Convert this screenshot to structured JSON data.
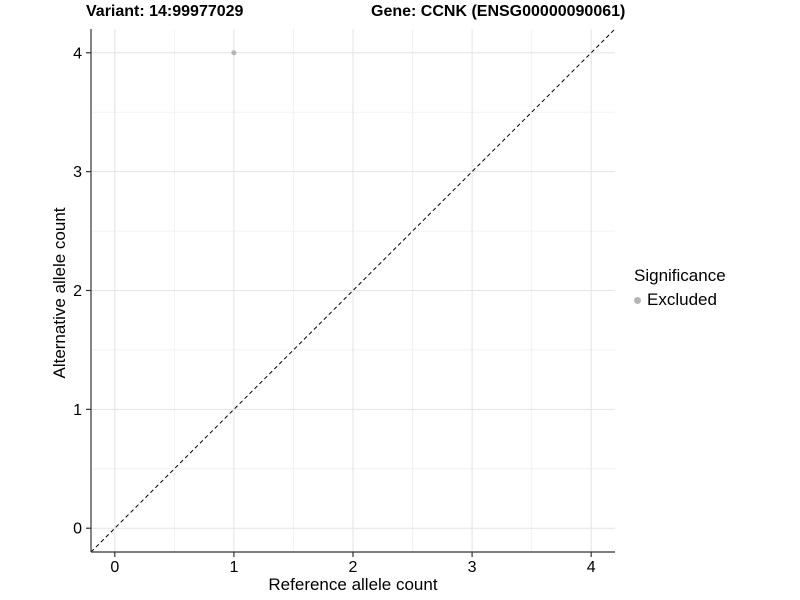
{
  "chart_data": {
    "type": "scatter",
    "titles": {
      "variant": "Variant: 14:99977029",
      "gene": "Gene: CCNK (ENSG00000090061)"
    },
    "xlabel": "Reference allele count",
    "ylabel": "Alternative allele count",
    "xlim": [
      -0.2,
      4.2
    ],
    "ylim": [
      -0.2,
      4.2
    ],
    "x_major_ticks": [
      0,
      1,
      2,
      3,
      4
    ],
    "y_major_ticks": [
      0,
      1,
      2,
      3,
      4
    ],
    "x_minor_ticks": [
      0.5,
      1.5,
      2.5,
      3.5
    ],
    "y_minor_ticks": [
      0.5,
      1.5,
      2.5,
      3.5
    ],
    "grid": true,
    "points": [
      {
        "x": 1,
        "y": 4,
        "significance": "Excluded"
      }
    ],
    "point_color": "#b5b5b5",
    "point_radius": 2.5,
    "identity_line": {
      "style": "dashed",
      "color": "#000000",
      "from": -0.2,
      "to": 4.2
    },
    "legend": {
      "title": "Significance",
      "position": "right",
      "entries": [
        {
          "label": "Excluded",
          "color": "#b5b5b5"
        }
      ]
    },
    "colors": {
      "background": "#ffffff",
      "grid_major": "#e3e3e3",
      "grid_minor": "#f2f2f2",
      "axis_line": "#333333",
      "tick_mark": "#333333",
      "text": "#000000"
    }
  }
}
